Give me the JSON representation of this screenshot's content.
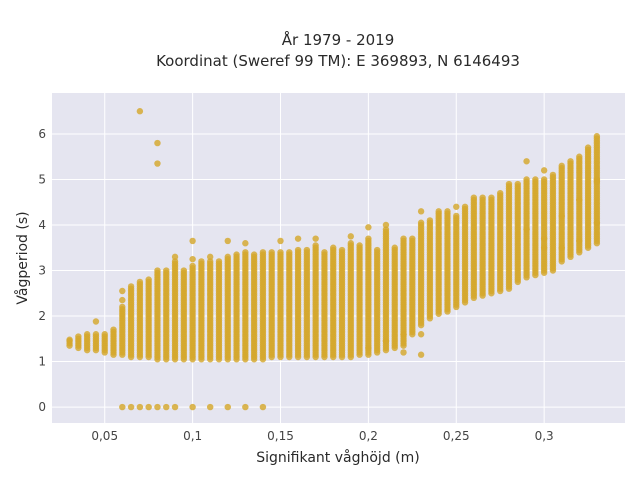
{
  "chart_data": {
    "type": "scatter",
    "title_line1": "År 1979 - 2019",
    "title_line2": "Koordinat (Sweref 99 TM): E 369893, N 6146493",
    "xlabel": "Signifikant våghöjd (m)",
    "ylabel": "Vågperiod (s)",
    "xlim": [
      0.02,
      0.346
    ],
    "ylim": [
      -0.35,
      6.9
    ],
    "x_ticks": [
      {
        "value": 0.05,
        "label": "0,05"
      },
      {
        "value": 0.1,
        "label": "0,1"
      },
      {
        "value": 0.15,
        "label": "0,15"
      },
      {
        "value": 0.2,
        "label": "0,2"
      },
      {
        "value": 0.25,
        "label": "0,25"
      },
      {
        "value": 0.3,
        "label": "0,3"
      }
    ],
    "y_ticks": [
      {
        "value": 0,
        "label": "0"
      },
      {
        "value": 1,
        "label": "1"
      },
      {
        "value": 2,
        "label": "2"
      },
      {
        "value": 3,
        "label": "3"
      },
      {
        "value": 4,
        "label": "4"
      },
      {
        "value": 5,
        "label": "5"
      },
      {
        "value": 6,
        "label": "6"
      }
    ],
    "grid": true,
    "colors": {
      "plot_background": "#e5e5f0",
      "grid": "#ffffff",
      "marker": "#d4a72c"
    },
    "columns": [
      {
        "x": 0.03,
        "ymin": 1.35,
        "ymax": 1.45,
        "extra": [
          1.48
        ]
      },
      {
        "x": 0.035,
        "ymin": 1.3,
        "ymax": 1.55,
        "extra": []
      },
      {
        "x": 0.04,
        "ymin": 1.25,
        "ymax": 1.6,
        "extra": []
      },
      {
        "x": 0.045,
        "ymin": 1.25,
        "ymax": 1.6,
        "extra": [
          1.88
        ]
      },
      {
        "x": 0.05,
        "ymin": 1.2,
        "ymax": 1.6,
        "extra": []
      },
      {
        "x": 0.055,
        "ymin": 1.15,
        "ymax": 1.7,
        "extra": []
      },
      {
        "x": 0.06,
        "ymin": 1.15,
        "ymax": 2.2,
        "extra": [
          2.35,
          2.55,
          0
        ]
      },
      {
        "x": 0.065,
        "ymin": 1.1,
        "ymax": 2.65,
        "extra": [
          0
        ]
      },
      {
        "x": 0.07,
        "ymin": 1.1,
        "ymax": 2.75,
        "extra": [
          6.5,
          0
        ]
      },
      {
        "x": 0.075,
        "ymin": 1.1,
        "ymax": 2.8,
        "extra": [
          0
        ]
      },
      {
        "x": 0.08,
        "ymin": 1.05,
        "ymax": 3.0,
        "extra": [
          5.8,
          5.35,
          0
        ]
      },
      {
        "x": 0.085,
        "ymin": 1.05,
        "ymax": 3.0,
        "extra": [
          0
        ]
      },
      {
        "x": 0.09,
        "ymin": 1.05,
        "ymax": 3.2,
        "extra": [
          3.3,
          0
        ]
      },
      {
        "x": 0.095,
        "ymin": 1.05,
        "ymax": 3.0,
        "extra": []
      },
      {
        "x": 0.1,
        "ymin": 1.05,
        "ymax": 3.1,
        "extra": [
          3.25,
          3.65,
          0
        ]
      },
      {
        "x": 0.105,
        "ymin": 1.05,
        "ymax": 3.2,
        "extra": []
      },
      {
        "x": 0.11,
        "ymin": 1.05,
        "ymax": 3.2,
        "extra": [
          3.3,
          0
        ]
      },
      {
        "x": 0.115,
        "ymin": 1.05,
        "ymax": 3.2,
        "extra": []
      },
      {
        "x": 0.12,
        "ymin": 1.05,
        "ymax": 3.3,
        "extra": [
          3.65,
          0
        ]
      },
      {
        "x": 0.125,
        "ymin": 1.05,
        "ymax": 3.35,
        "extra": []
      },
      {
        "x": 0.13,
        "ymin": 1.05,
        "ymax": 3.4,
        "extra": [
          3.6,
          0
        ]
      },
      {
        "x": 0.135,
        "ymin": 1.05,
        "ymax": 3.35,
        "extra": []
      },
      {
        "x": 0.14,
        "ymin": 1.05,
        "ymax": 3.4,
        "extra": [
          0
        ]
      },
      {
        "x": 0.145,
        "ymin": 1.1,
        "ymax": 3.4,
        "extra": []
      },
      {
        "x": 0.15,
        "ymin": 1.1,
        "ymax": 3.4,
        "extra": [
          3.65
        ]
      },
      {
        "x": 0.155,
        "ymin": 1.1,
        "ymax": 3.4,
        "extra": []
      },
      {
        "x": 0.16,
        "ymin": 1.1,
        "ymax": 3.45,
        "extra": [
          3.7
        ]
      },
      {
        "x": 0.165,
        "ymin": 1.1,
        "ymax": 3.45,
        "extra": []
      },
      {
        "x": 0.17,
        "ymin": 1.1,
        "ymax": 3.55,
        "extra": [
          3.7
        ]
      },
      {
        "x": 0.175,
        "ymin": 1.1,
        "ymax": 3.4,
        "extra": []
      },
      {
        "x": 0.18,
        "ymin": 1.1,
        "ymax": 3.5,
        "extra": []
      },
      {
        "x": 0.185,
        "ymin": 1.1,
        "ymax": 3.45,
        "extra": []
      },
      {
        "x": 0.19,
        "ymin": 1.1,
        "ymax": 3.6,
        "extra": [
          3.75
        ]
      },
      {
        "x": 0.195,
        "ymin": 1.15,
        "ymax": 3.55,
        "extra": []
      },
      {
        "x": 0.2,
        "ymin": 1.15,
        "ymax": 3.7,
        "extra": [
          3.95,
          1.3
        ]
      },
      {
        "x": 0.205,
        "ymin": 1.2,
        "ymax": 3.45,
        "extra": []
      },
      {
        "x": 0.21,
        "ymin": 1.25,
        "ymax": 3.9,
        "extra": [
          4.0,
          1.45
        ]
      },
      {
        "x": 0.215,
        "ymin": 1.3,
        "ymax": 3.5,
        "extra": []
      },
      {
        "x": 0.22,
        "ymin": 1.35,
        "ymax": 3.7,
        "extra": [
          1.2,
          1.6
        ]
      },
      {
        "x": 0.225,
        "ymin": 1.6,
        "ymax": 3.7,
        "extra": []
      },
      {
        "x": 0.23,
        "ymin": 1.8,
        "ymax": 4.05,
        "extra": [
          4.3,
          1.6,
          1.15
        ]
      },
      {
        "x": 0.235,
        "ymin": 1.95,
        "ymax": 4.1,
        "extra": []
      },
      {
        "x": 0.24,
        "ymin": 2.05,
        "ymax": 4.3,
        "extra": []
      },
      {
        "x": 0.245,
        "ymin": 2.1,
        "ymax": 4.3,
        "extra": []
      },
      {
        "x": 0.25,
        "ymin": 2.2,
        "ymax": 4.2,
        "extra": [
          4.4
        ]
      },
      {
        "x": 0.255,
        "ymin": 2.3,
        "ymax": 4.4,
        "extra": []
      },
      {
        "x": 0.26,
        "ymin": 2.4,
        "ymax": 4.6,
        "extra": []
      },
      {
        "x": 0.265,
        "ymin": 2.45,
        "ymax": 4.6,
        "extra": []
      },
      {
        "x": 0.27,
        "ymin": 2.5,
        "ymax": 4.6,
        "extra": []
      },
      {
        "x": 0.275,
        "ymin": 2.55,
        "ymax": 4.7,
        "extra": []
      },
      {
        "x": 0.28,
        "ymin": 2.6,
        "ymax": 4.9,
        "extra": []
      },
      {
        "x": 0.285,
        "ymin": 2.75,
        "ymax": 4.9,
        "extra": []
      },
      {
        "x": 0.29,
        "ymin": 2.85,
        "ymax": 5.0,
        "extra": [
          5.4,
          3.9
        ]
      },
      {
        "x": 0.295,
        "ymin": 2.9,
        "ymax": 5.0,
        "extra": []
      },
      {
        "x": 0.3,
        "ymin": 2.95,
        "ymax": 5.0,
        "extra": [
          5.2,
          3.5,
          3.7
        ]
      },
      {
        "x": 0.305,
        "ymin": 3.0,
        "ymax": 5.1,
        "extra": []
      },
      {
        "x": 0.31,
        "ymin": 3.2,
        "ymax": 5.3,
        "extra": [
          3.5,
          4.2
        ]
      },
      {
        "x": 0.315,
        "ymin": 3.3,
        "ymax": 5.4,
        "extra": []
      },
      {
        "x": 0.32,
        "ymin": 3.4,
        "ymax": 5.5,
        "extra": [
          4.55,
          3.65
        ]
      },
      {
        "x": 0.325,
        "ymin": 3.5,
        "ymax": 5.7,
        "extra": []
      },
      {
        "x": 0.33,
        "ymin": 3.6,
        "ymax": 5.95,
        "extra": [
          4.05,
          4.95,
          5.0
        ]
      }
    ]
  }
}
